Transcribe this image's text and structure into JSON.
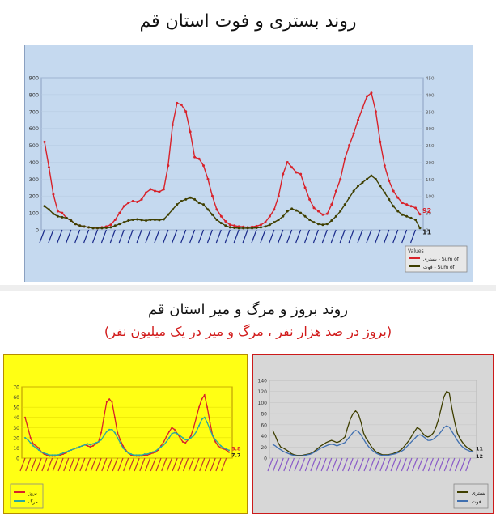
{
  "page": {
    "top_title": "روند بستری و فوت استان قم",
    "mid_title": "روند بروز و مرگ و میر استان قم",
    "mid_subtitle": "(بروز در صد هزار نفر ، مرگ و میر در یک میلیون نفر)"
  },
  "colors": {
    "top_bg": "#c5d9ef",
    "red_series": "#d8222a",
    "olive_series": "#3f3f00",
    "yellow_bg": "#ffff14",
    "gray_bg": "#d7d7d7",
    "teal_series": "#2aa9a0",
    "blue_series": "#3f6fb0"
  },
  "chart_data": [
    {
      "type": "line",
      "ylim": [
        0,
        900
      ],
      "y2lim": [
        0,
        450
      ],
      "yticks": [
        "0",
        "100",
        "200",
        "300",
        "400",
        "500",
        "600",
        "700",
        "800",
        "900"
      ],
      "y2ticks": [
        "0",
        "50",
        "100",
        "150",
        "200",
        "250",
        "300",
        "350",
        "400",
        "450"
      ],
      "legend": {
        "title": "Values",
        "placement": "bottom-right"
      },
      "series": [
        {
          "name": "بستری - Sum of",
          "axis": "left",
          "color": "#d8222a",
          "values": [
            520,
            370,
            210,
            110,
            100,
            70,
            55,
            35,
            25,
            20,
            15,
            12,
            10,
            15,
            20,
            30,
            60,
            100,
            140,
            160,
            170,
            165,
            180,
            220,
            240,
            230,
            225,
            240,
            380,
            620,
            750,
            740,
            700,
            580,
            430,
            420,
            380,
            300,
            200,
            120,
            80,
            50,
            30,
            25,
            20,
            18,
            15,
            18,
            22,
            30,
            45,
            80,
            120,
            200,
            330,
            400,
            370,
            340,
            330,
            250,
            180,
            130,
            110,
            90,
            95,
            150,
            230,
            300,
            420,
            500,
            570,
            650,
            720,
            790,
            810,
            700,
            520,
            380,
            290,
            230,
            190,
            160,
            150,
            140,
            130,
            92
          ],
          "end_label": "92"
        },
        {
          "name": "فوت - Sum of",
          "axis": "left",
          "color": "#3f3f00",
          "values": [
            140,
            120,
            95,
            80,
            75,
            70,
            55,
            35,
            25,
            20,
            15,
            10,
            10,
            10,
            12,
            15,
            25,
            35,
            45,
            55,
            60,
            62,
            58,
            55,
            60,
            60,
            58,
            62,
            90,
            120,
            150,
            170,
            180,
            190,
            180,
            160,
            150,
            120,
            90,
            60,
            40,
            25,
            15,
            12,
            10,
            10,
            10,
            10,
            12,
            15,
            20,
            30,
            45,
            60,
            80,
            110,
            125,
            115,
            100,
            80,
            60,
            45,
            35,
            30,
            35,
            55,
            80,
            110,
            150,
            190,
            230,
            260,
            280,
            300,
            320,
            300,
            260,
            220,
            180,
            140,
            110,
            90,
            80,
            70,
            60,
            11
          ],
          "end_label": "11"
        }
      ]
    },
    {
      "type": "line",
      "ylim": [
        0,
        70
      ],
      "yticks": [
        "0",
        "10",
        "20",
        "30",
        "40",
        "50",
        "60",
        "70"
      ],
      "series": [
        {
          "name": "بروز",
          "color": "#d8222a",
          "values": [
            40,
            30,
            20,
            14,
            12,
            10,
            6,
            4,
            3,
            2,
            2,
            2,
            3,
            3,
            4,
            5,
            7,
            8,
            9,
            10,
            11,
            12,
            13,
            12,
            11,
            12,
            14,
            16,
            25,
            40,
            55,
            58,
            55,
            40,
            25,
            18,
            12,
            8,
            5,
            3,
            2,
            2,
            2,
            2,
            3,
            3,
            4,
            5,
            6,
            8,
            12,
            16,
            21,
            26,
            30,
            28,
            24,
            20,
            16,
            15,
            18,
            22,
            30,
            40,
            50,
            58,
            62,
            50,
            35,
            22,
            16,
            12,
            10,
            9,
            8,
            5.8
          ],
          "end_label": "5.8"
        },
        {
          "name": "مرگ",
          "color": "#2aa9a0",
          "values": [
            20,
            18,
            15,
            12,
            10,
            8,
            6,
            5,
            4,
            3,
            3,
            3,
            3,
            4,
            5,
            6,
            7,
            8,
            9,
            10,
            11,
            12,
            13,
            14,
            13,
            14,
            15,
            16,
            18,
            22,
            26,
            28,
            28,
            25,
            20,
            15,
            10,
            7,
            5,
            4,
            3,
            3,
            3,
            3,
            4,
            4,
            5,
            6,
            7,
            9,
            11,
            13,
            16,
            20,
            24,
            25,
            24,
            22,
            20,
            18,
            18,
            20,
            22,
            26,
            32,
            38,
            40,
            35,
            28,
            22,
            18,
            15,
            12,
            10,
            9,
            7.7
          ],
          "end_label": "7.7"
        }
      ]
    },
    {
      "type": "line",
      "ylim": [
        0,
        140
      ],
      "yticks": [
        "0",
        "20",
        "40",
        "60",
        "80",
        "100",
        "120",
        "140"
      ],
      "series": [
        {
          "name": "بستری",
          "color": "#3f3f00",
          "values": [
            50,
            40,
            28,
            20,
            18,
            15,
            12,
            8,
            6,
            5,
            5,
            5,
            6,
            7,
            8,
            10,
            14,
            18,
            22,
            25,
            28,
            30,
            32,
            30,
            28,
            30,
            34,
            38,
            55,
            70,
            80,
            85,
            80,
            65,
            45,
            35,
            28,
            20,
            14,
            10,
            8,
            6,
            6,
            6,
            7,
            8,
            10,
            12,
            15,
            20,
            26,
            32,
            40,
            48,
            55,
            52,
            45,
            40,
            38,
            40,
            45,
            55,
            70,
            90,
            110,
            120,
            118,
            90,
            65,
            45,
            35,
            28,
            22,
            18,
            15,
            11
          ],
          "end_label": "11"
        },
        {
          "name": "فوت",
          "color": "#3f6fb0",
          "values": [
            25,
            22,
            18,
            15,
            12,
            10,
            8,
            6,
            5,
            4,
            4,
            4,
            5,
            6,
            7,
            9,
            12,
            15,
            18,
            20,
            22,
            24,
            25,
            24,
            22,
            24,
            26,
            28,
            34,
            40,
            46,
            50,
            48,
            42,
            34,
            26,
            20,
            15,
            11,
            8,
            6,
            5,
            5,
            5,
            6,
            7,
            8,
            10,
            12,
            15,
            20,
            25,
            30,
            35,
            40,
            42,
            40,
            36,
            32,
            32,
            34,
            38,
            42,
            48,
            55,
            58,
            56,
            48,
            40,
            32,
            25,
            20,
            16,
            14,
            12,
            12
          ],
          "end_label": "12"
        }
      ]
    }
  ]
}
